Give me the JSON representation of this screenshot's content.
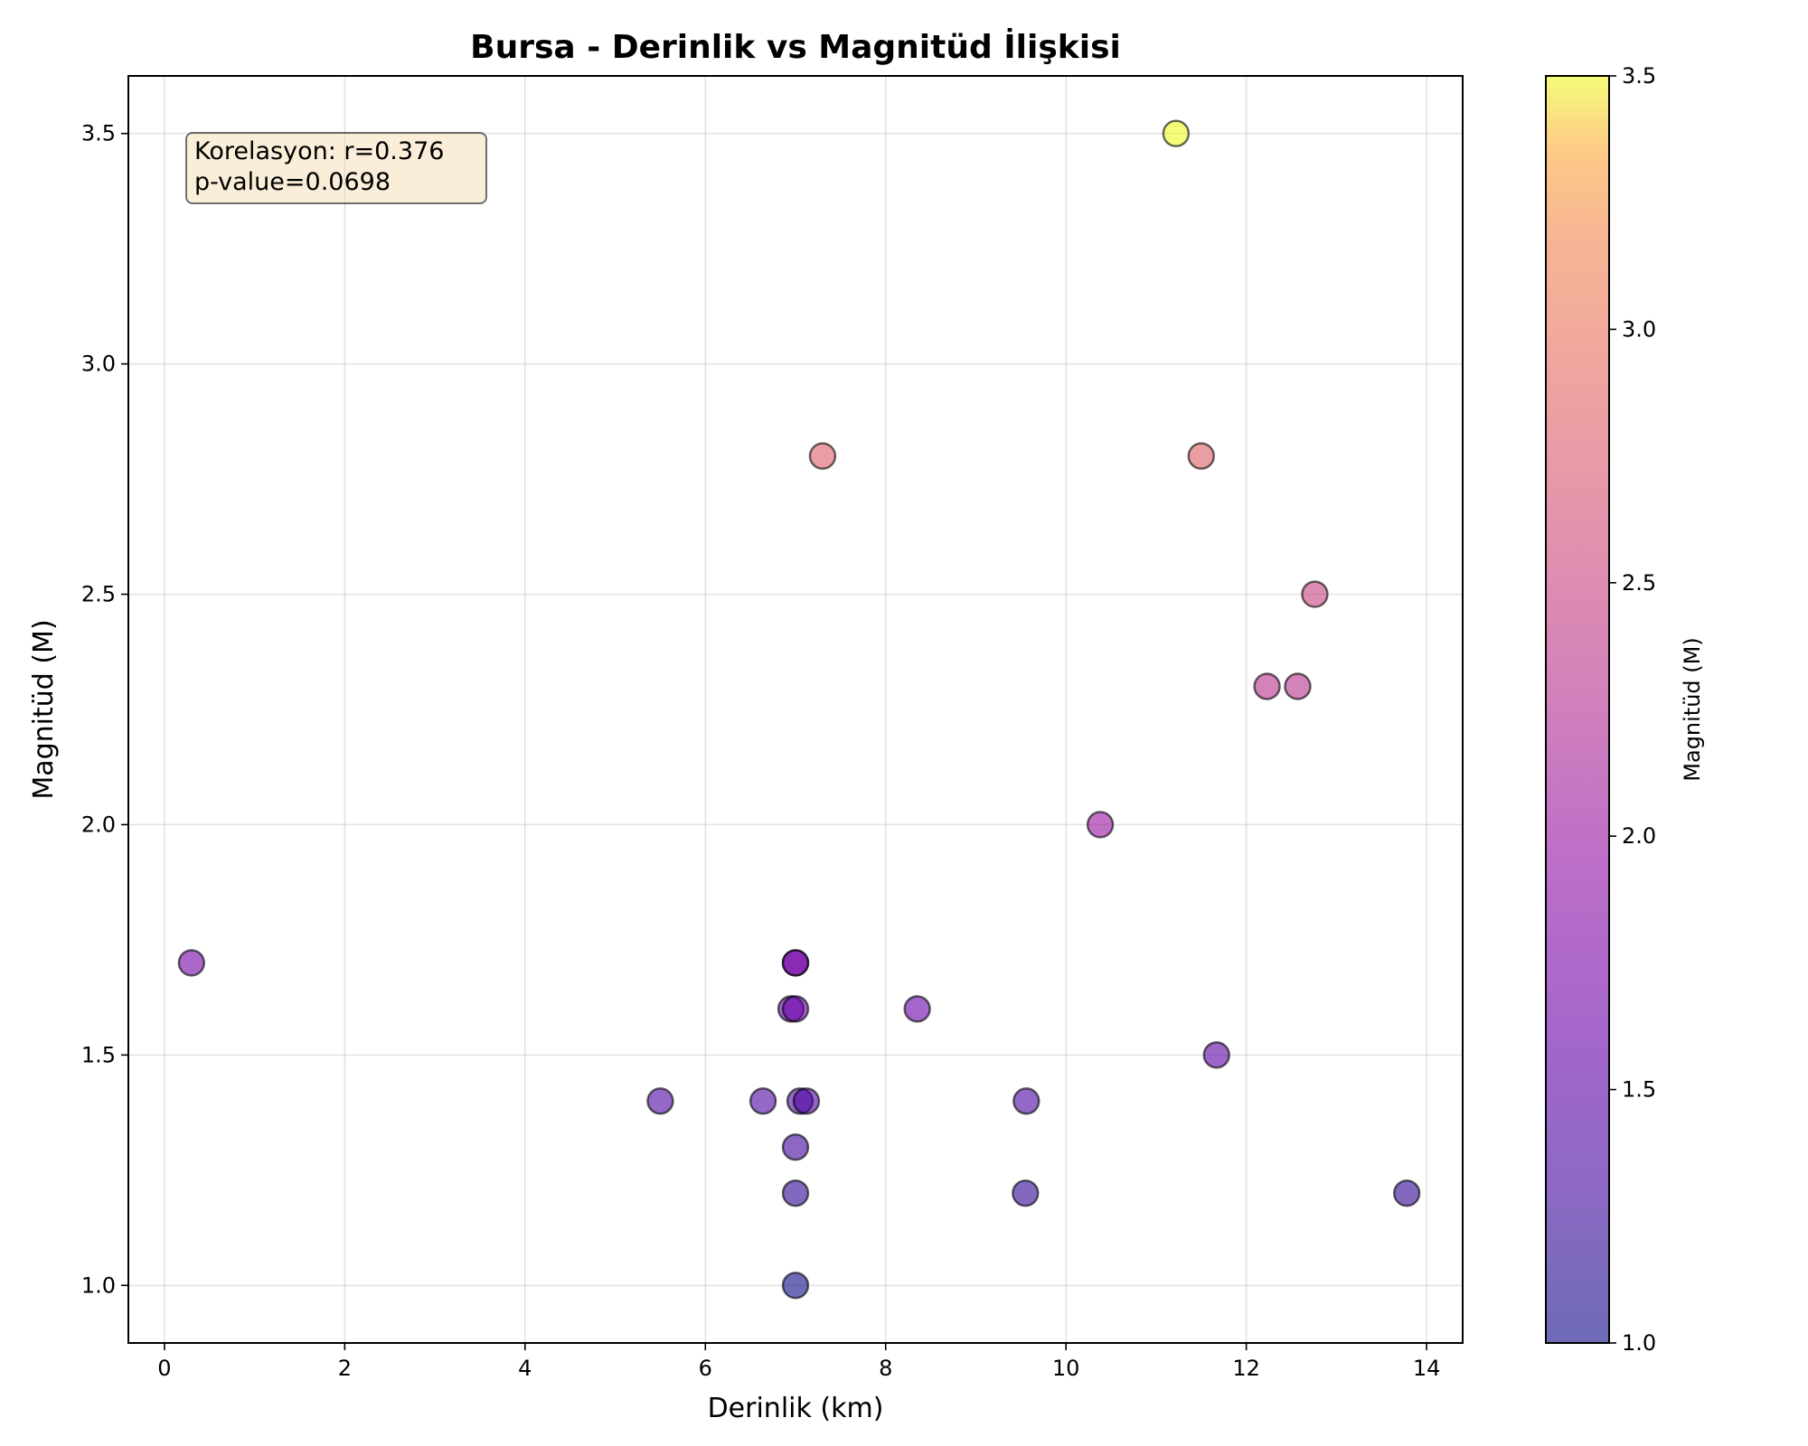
{
  "chart_data": {
    "type": "scatter",
    "title": "Bursa - Derinlik vs Magnitüd İlişkisi",
    "xlabel": "Derinlik (km)",
    "ylabel": "Magnitüd (M)",
    "xlim": [
      -0.4,
      14.4
    ],
    "ylim": [
      0.875,
      3.625
    ],
    "xticks": [
      0,
      2,
      4,
      6,
      8,
      10,
      12,
      14
    ],
    "yticks": [
      1.0,
      1.5,
      2.0,
      2.5,
      3.0,
      3.5
    ],
    "grid": true,
    "colorbar": {
      "label": "Magnitüd (M)",
      "range": [
        1.0,
        3.5
      ],
      "ticks": [
        1.0,
        1.5,
        2.0,
        2.5,
        3.0,
        3.5
      ],
      "colormap": "plasma",
      "marker_alpha": 0.6
    },
    "annotation": {
      "lines": [
        "Korelasyon: r=0.376",
        "p-value=0.0698"
      ],
      "position": "top-left"
    },
    "points": [
      {
        "x": 0.3,
        "y": 1.7
      },
      {
        "x": 5.5,
        "y": 1.4
      },
      {
        "x": 6.64,
        "y": 1.4
      },
      {
        "x": 6.95,
        "y": 1.6
      },
      {
        "x": 7.0,
        "y": 1.6
      },
      {
        "x": 7.0,
        "y": 1.7
      },
      {
        "x": 7.0,
        "y": 1.7
      },
      {
        "x": 7.0,
        "y": 1.3
      },
      {
        "x": 7.0,
        "y": 1.2
      },
      {
        "x": 7.0,
        "y": 1.0
      },
      {
        "x": 7.05,
        "y": 1.4
      },
      {
        "x": 7.12,
        "y": 1.4
      },
      {
        "x": 7.3,
        "y": 2.8
      },
      {
        "x": 8.35,
        "y": 1.6
      },
      {
        "x": 9.56,
        "y": 1.4
      },
      {
        "x": 9.55,
        "y": 1.2
      },
      {
        "x": 10.38,
        "y": 2.0
      },
      {
        "x": 11.22,
        "y": 3.5
      },
      {
        "x": 11.5,
        "y": 2.8
      },
      {
        "x": 11.67,
        "y": 1.5
      },
      {
        "x": 12.23,
        "y": 2.3
      },
      {
        "x": 12.57,
        "y": 2.3
      },
      {
        "x": 12.76,
        "y": 2.5
      },
      {
        "x": 13.78,
        "y": 1.2
      }
    ]
  }
}
